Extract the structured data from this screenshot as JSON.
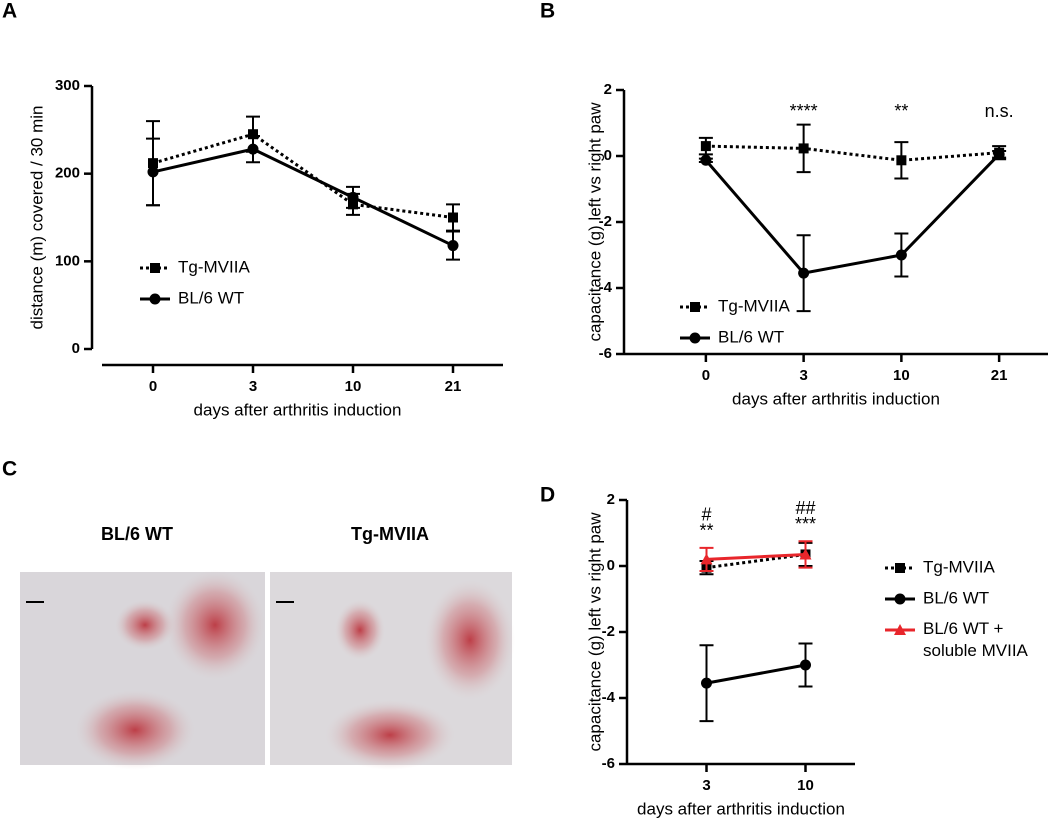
{
  "panel_labels": [
    "A",
    "B",
    "C",
    "D"
  ],
  "image_panel": {
    "labels": [
      "BL/6 WT",
      "Tg-MVIIA"
    ]
  },
  "chart_data": [
    {
      "type": "line",
      "x_label": "days after arthritis induction",
      "y_label": "distance (m) covered / 30 min",
      "categories": [
        "0",
        "3",
        "10",
        "21"
      ],
      "ylim": [
        0,
        300
      ],
      "yticks": [
        0,
        100,
        200,
        300
      ],
      "legend": "lower left",
      "series": [
        {
          "name": "Tg-MVIIA",
          "color": "#000000",
          "linestyle": "dotted",
          "marker": "square",
          "values": [
            212,
            245,
            165,
            150
          ],
          "errors": [
            48,
            20,
            12,
            15
          ]
        },
        {
          "name": "BL/6 WT",
          "color": "#000000",
          "linestyle": "solid",
          "marker": "circle",
          "values": [
            202,
            228,
            173,
            118
          ],
          "errors": [
            38,
            15,
            12,
            16
          ]
        }
      ]
    },
    {
      "type": "line",
      "x_label": "days after arthritis induction",
      "y_label": "capacitance (g) left vs right paw",
      "categories": [
        "0",
        "3",
        "10",
        "21"
      ],
      "ylim": [
        -6,
        2
      ],
      "yticks": [
        -6,
        -4,
        -2,
        0,
        2
      ],
      "legend": "lower left",
      "annotations": [
        {
          "text": "****",
          "x": "3"
        },
        {
          "text": "**",
          "x": "10"
        },
        {
          "text": "n.s.",
          "x": "21"
        }
      ],
      "series": [
        {
          "name": "Tg-MVIIA",
          "color": "#000000",
          "linestyle": "dotted",
          "marker": "square",
          "values": [
            0.3,
            0.23,
            -0.13,
            0.1
          ],
          "errors": [
            0.25,
            0.72,
            0.55,
            0.2
          ]
        },
        {
          "name": "BL/6 WT",
          "color": "#000000",
          "linestyle": "solid",
          "marker": "circle",
          "values": [
            -0.13,
            -3.55,
            -3.0,
            0.05
          ],
          "errors": [
            0.05,
            1.15,
            0.65,
            0.1
          ]
        }
      ]
    },
    {
      "type": "line",
      "x_label": "days after arthritis induction",
      "y_label": "capacitance (g) left vs right paw",
      "categories": [
        "3",
        "10"
      ],
      "ylim": [
        -6,
        2
      ],
      "yticks": [
        -6,
        -4,
        -2,
        0,
        2
      ],
      "legend": "right",
      "annotations": [
        {
          "text": "#",
          "x": "3"
        },
        {
          "text": "**",
          "x": "3"
        },
        {
          "text": "##",
          "x": "10"
        },
        {
          "text": "***",
          "x": "10"
        }
      ],
      "series": [
        {
          "name": "Tg-MVIIA",
          "color": "#000000",
          "linestyle": "dotted",
          "marker": "square",
          "values": [
            -0.05,
            0.35
          ],
          "errors": [
            0.2,
            0.35
          ]
        },
        {
          "name": "BL/6 WT",
          "color": "#000000",
          "linestyle": "solid",
          "marker": "circle",
          "values": [
            -3.55,
            -3.0
          ],
          "errors": [
            1.15,
            0.65
          ]
        },
        {
          "name": "BL/6 WT + soluble MVIIA",
          "color": "#e8262b",
          "linestyle": "solid",
          "marker": "triangle",
          "values": [
            0.2,
            0.35
          ],
          "errors": [
            0.35,
            0.4
          ]
        }
      ]
    }
  ]
}
